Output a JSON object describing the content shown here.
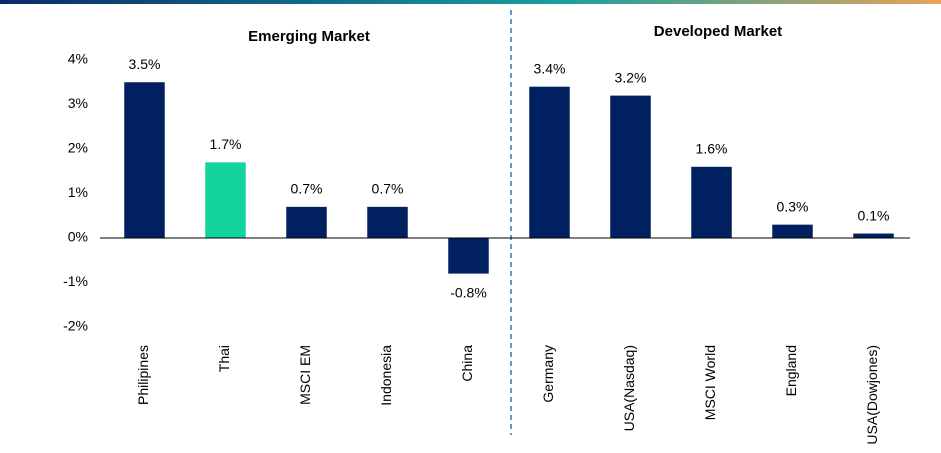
{
  "chart_data": {
    "type": "bar",
    "categories": [
      "Philipines",
      "Thai",
      "MSCI EM",
      "Indonesia",
      "China",
      "Germany",
      "USA(Nasdaq)",
      "MSCI World",
      "England",
      "USA(Dowjones)"
    ],
    "values": [
      3.5,
      1.7,
      0.7,
      0.7,
      -0.8,
      3.4,
      3.2,
      1.6,
      0.3,
      0.1
    ],
    "value_labels": [
      "3.5%",
      "1.7%",
      "0.7%",
      "0.7%",
      "-0.8%",
      "3.4%",
      "3.2%",
      "1.6%",
      "0.3%",
      "0.1%"
    ],
    "colors": [
      "#002060",
      "#12d49c",
      "#002060",
      "#002060",
      "#002060",
      "#002060",
      "#002060",
      "#002060",
      "#002060",
      "#002060"
    ],
    "ylim": [
      -2,
      4
    ],
    "yticks": [
      {
        "value": -2,
        "label": "-2%"
      },
      {
        "value": -1,
        "label": "-1%"
      },
      {
        "value": 0,
        "label": "0%"
      },
      {
        "value": 1,
        "label": "1%"
      },
      {
        "value": 2,
        "label": "2%"
      },
      {
        "value": 3,
        "label": "3%"
      },
      {
        "value": 4,
        "label": "4%"
      }
    ],
    "annotations": [
      "Emerging Market",
      "Developed Market"
    ],
    "grid": false
  }
}
